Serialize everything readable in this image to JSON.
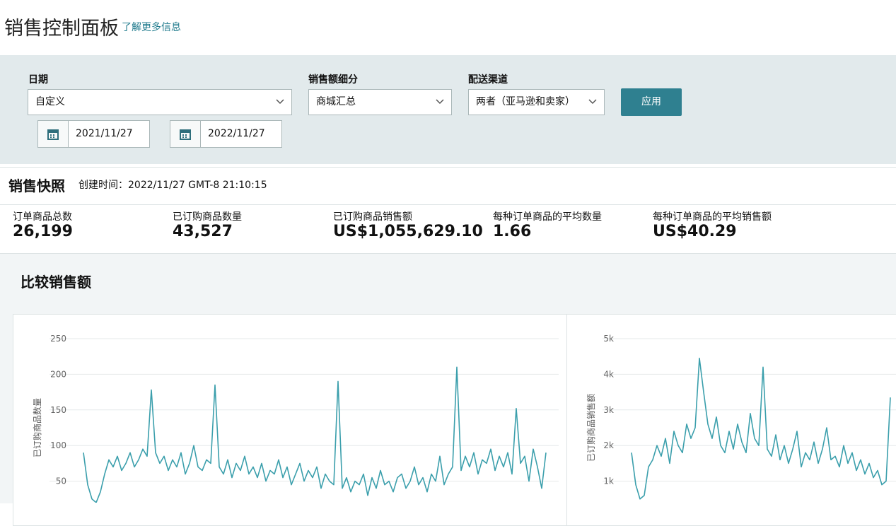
{
  "header": {
    "title": "销售控制面板",
    "link": "了解更多信息"
  },
  "filters": {
    "date": {
      "label": "日期",
      "value": "自定义",
      "start": "2021/11/27",
      "end": "2022/11/27"
    },
    "breakdown": {
      "label": "销售额细分",
      "value": "商城汇总"
    },
    "channel": {
      "label": "配送渠道",
      "value": "两者（亚马逊和卖家）"
    },
    "apply": "应用"
  },
  "snapshot": {
    "title": "销售快照",
    "created_label": "创建时间：",
    "created": "2022/11/27 GMT-8 21:10:15",
    "metrics": [
      {
        "label": "订单商品总数",
        "value": "26,199"
      },
      {
        "label": "已订购商品数量",
        "value": "43,527"
      },
      {
        "label": "已订购商品销售额",
        "value": "US$1,055,629.10"
      },
      {
        "label": "每种订单商品的平均数量",
        "value": "1.66"
      },
      {
        "label": "每种订单商品的平均销售额",
        "value": "US$40.29"
      }
    ]
  },
  "compare": {
    "title": "比较销售额"
  },
  "chart_data": [
    {
      "type": "line",
      "y_label": "已订购商品数量",
      "color": "#3b9fac",
      "grid": true,
      "ylim": [
        0,
        250
      ],
      "yticks": [
        50,
        100,
        150,
        200,
        250
      ],
      "values": [
        90,
        45,
        25,
        20,
        35,
        60,
        80,
        70,
        85,
        65,
        75,
        90,
        70,
        80,
        95,
        85,
        178,
        90,
        75,
        85,
        65,
        80,
        70,
        90,
        60,
        75,
        100,
        70,
        65,
        80,
        75,
        185,
        70,
        60,
        80,
        55,
        75,
        65,
        85,
        60,
        70,
        55,
        75,
        50,
        65,
        60,
        80,
        55,
        70,
        45,
        60,
        75,
        50,
        65,
        55,
        70,
        40,
        60,
        50,
        45,
        190,
        40,
        55,
        35,
        50,
        45,
        60,
        30,
        55,
        40,
        65,
        45,
        50,
        35,
        55,
        60,
        40,
        50,
        70,
        45,
        55,
        35,
        60,
        50,
        85,
        45,
        60,
        70,
        210,
        65,
        85,
        70,
        90,
        60,
        80,
        75,
        95,
        65,
        85,
        70,
        90,
        60,
        152,
        75,
        85,
        50,
        95,
        70,
        40,
        90
      ]
    },
    {
      "type": "line",
      "y_label": "已订购商品销售额",
      "color": "#3b9fac",
      "grid": true,
      "ylim": [
        0,
        5000
      ],
      "yticks": [
        {
          "value": 1000,
          "label": "1k"
        },
        {
          "value": 2000,
          "label": "2k"
        },
        {
          "value": 3000,
          "label": "3k"
        },
        {
          "value": 4000,
          "label": "4k"
        },
        {
          "value": 5000,
          "label": "5k"
        }
      ],
      "values": [
        1800,
        900,
        500,
        600,
        1400,
        1600,
        2000,
        1700,
        2200,
        1500,
        2400,
        2000,
        1800,
        2600,
        2200,
        2500,
        4450,
        3500,
        2600,
        2200,
        2800,
        2000,
        1800,
        2400,
        1900,
        2600,
        2100,
        1800,
        2900,
        2200,
        2000,
        4200,
        1900,
        1700,
        2300,
        1600,
        2000,
        1500,
        1900,
        2400,
        1400,
        1800,
        1600,
        2100,
        1500,
        1900,
        2500,
        1600,
        1700,
        1400,
        2000,
        1500,
        1800,
        1300,
        1600,
        1200,
        1500,
        1100,
        1300,
        900,
        1000,
        3350
      ]
    }
  ]
}
